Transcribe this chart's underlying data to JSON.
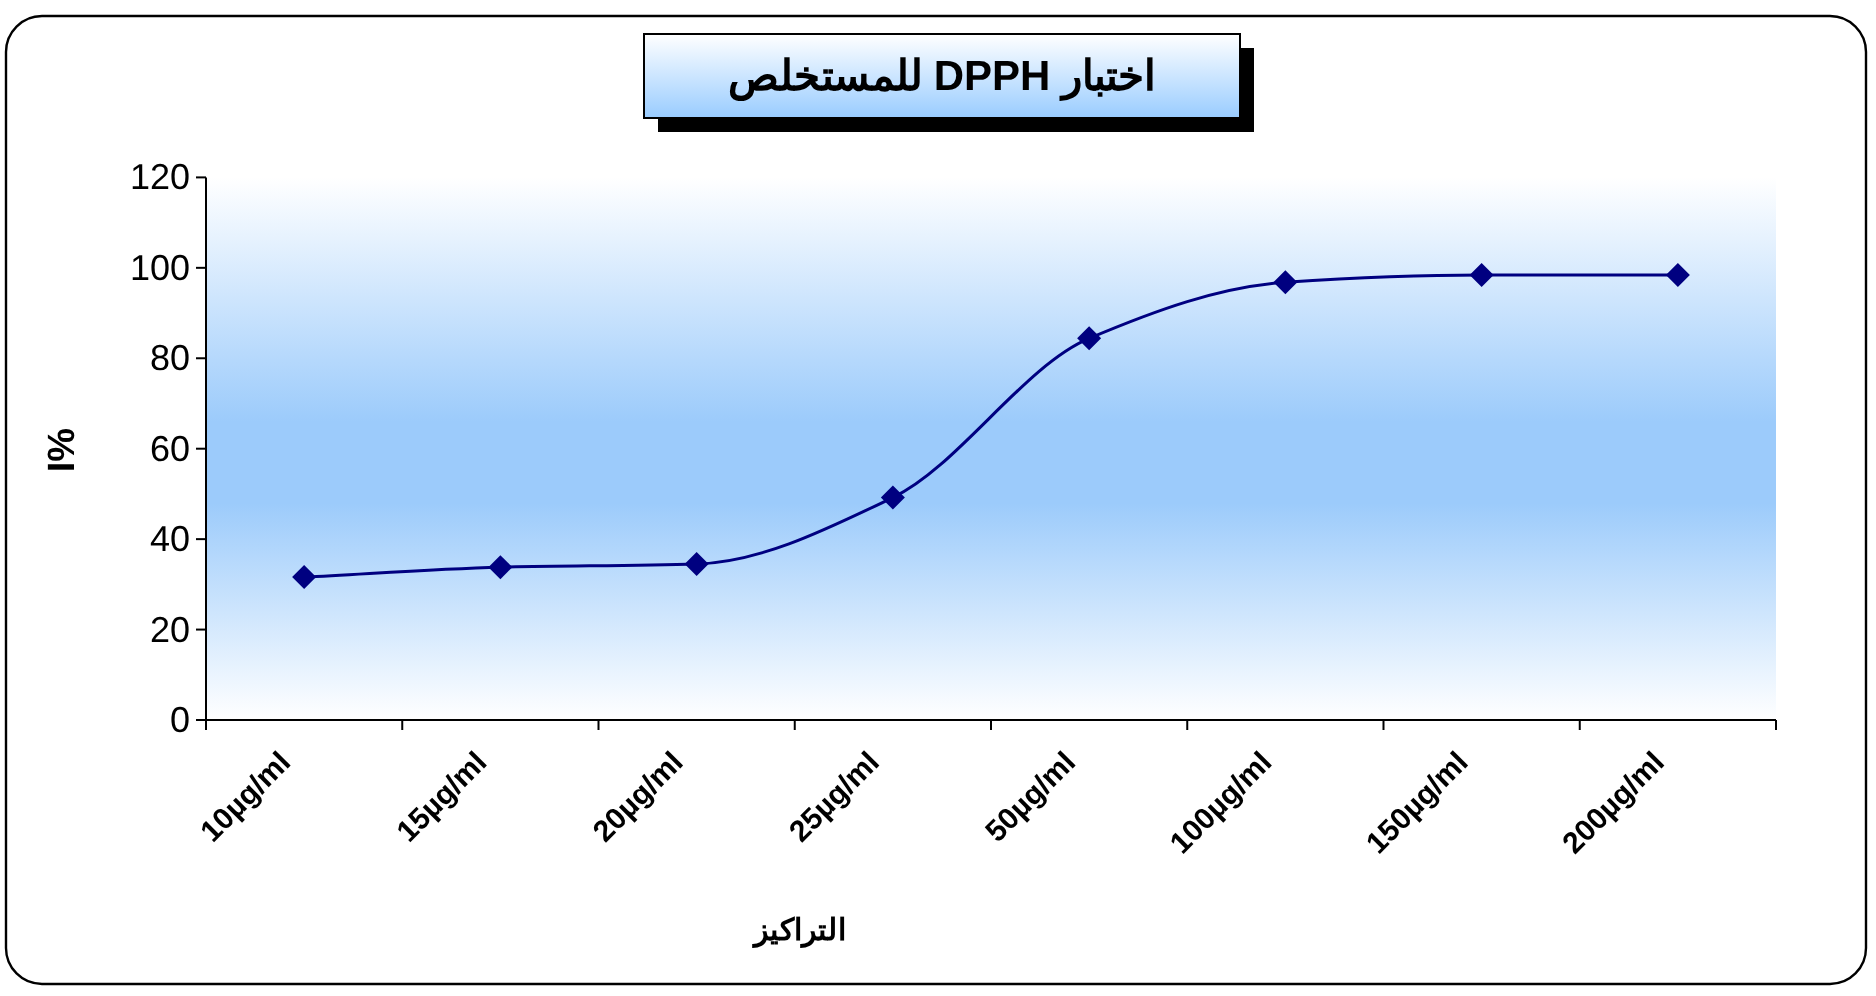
{
  "chart_data": {
    "type": "line",
    "title": "اختبار DPPH للمستخلص",
    "xlabel": "التراكيز",
    "ylabel": "I%",
    "categories": [
      "10µg/ml",
      "15µg/ml",
      "20µg/ml",
      "25µg/ml",
      "50µg/ml",
      "100µg/ml",
      "150µg/ml",
      "200µg/ml"
    ],
    "series": [
      {
        "color": "#000080",
        "values": [
          31.6,
          33.8,
          34.5,
          49.2,
          84.4,
          96.8,
          98.4,
          98.4
        ]
      }
    ],
    "ylim": [
      0,
      120
    ],
    "yticks": [
      0,
      20,
      40,
      60,
      80,
      100,
      120
    ],
    "marker": "diamond",
    "line_style": "solid"
  }
}
